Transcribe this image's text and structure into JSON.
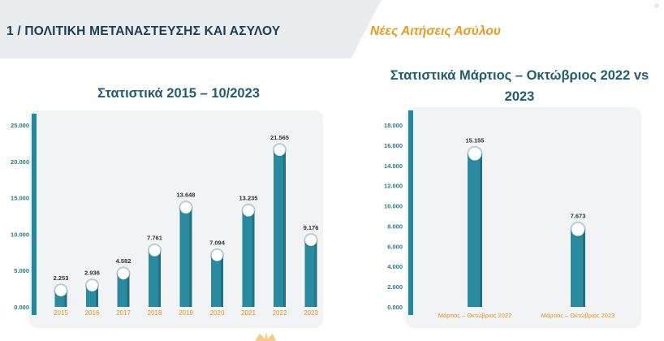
{
  "header": {
    "title": "1 / ΠΟΛΙΤΙΚΗ ΜΕΤΑΝΑΣΤΕΥΣΗΣ ΚΑΙ ΑΣΥΛΟΥ",
    "subtitle": "Νέες Αιτήσεις Ασύλου"
  },
  "colors": {
    "bar": "#2a8a9f",
    "bar_dark": "#1f7183",
    "axis": "#1f8aa0",
    "tick_label": "#2c7a8c",
    "category_label": "#e8921e",
    "value_label": "#333333",
    "panel": "#f2f3f5"
  },
  "chart_data": [
    {
      "type": "bar",
      "title": "Στατιστικά 2015 – 10/2023",
      "categories": [
        "2015",
        "2016",
        "2017",
        "2018",
        "2019",
        "2020",
        "2021",
        "2022",
        "2023"
      ],
      "values": [
        2253,
        2936,
        4582,
        7761,
        13648,
        7094,
        13235,
        21565,
        9176
      ],
      "value_labels": [
        "2.253",
        "2.936",
        "4.582",
        "7.761",
        "13.648",
        "7.094",
        "13.235",
        "21.565",
        "9.176"
      ],
      "ylim": [
        0,
        25000
      ],
      "yticks": [
        0,
        5000,
        10000,
        15000,
        20000,
        25000
      ],
      "ytick_labels": [
        "0.000",
        "5.000",
        "10.000",
        "15.000",
        "20.000",
        "25.000"
      ],
      "xlabel": "",
      "ylabel": "",
      "grid": false
    },
    {
      "type": "bar",
      "title": "Στατιστικά Μάρτιος – Οκτώβριος 2022 vs 2023",
      "categories": [
        "Μάρτιος – Οκτώβριος 2022",
        "Μάρτιος – Οκτώβριος 2023"
      ],
      "values": [
        15155,
        7673
      ],
      "value_labels": [
        "15.155",
        "7.673"
      ],
      "ylim": [
        0,
        18000
      ],
      "yticks": [
        0,
        2000,
        4000,
        6000,
        8000,
        10000,
        12000,
        14000,
        16000,
        18000
      ],
      "ytick_labels": [
        "0.000",
        "2.000",
        "4.000",
        "6.000",
        "8.000",
        "10.000",
        "12.000",
        "14.000",
        "16.000",
        "18.000"
      ],
      "xlabel": "",
      "ylabel": "",
      "grid": false
    }
  ]
}
